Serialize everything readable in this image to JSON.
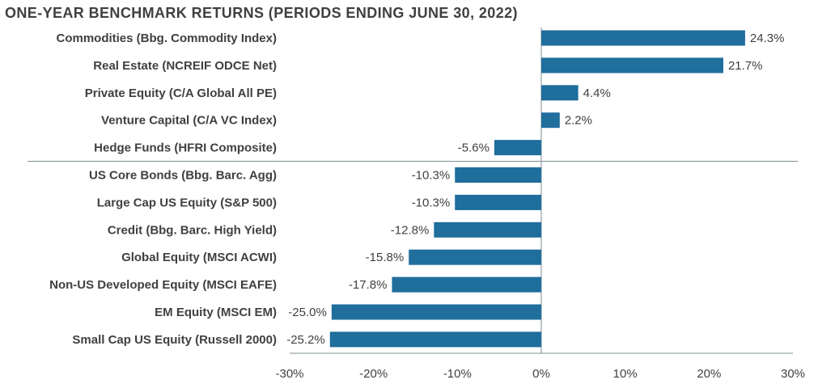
{
  "chart_data": {
    "type": "bar",
    "orientation": "horizontal",
    "title": "ONE-YEAR BENCHMARK RETURNS (PERIODS ENDING JUNE 30, 2022)",
    "xlabel": "",
    "ylabel": "",
    "xlim": [
      -30,
      30
    ],
    "x_ticks": [
      "-30%",
      "-20%",
      "-10%",
      "0%",
      "10%",
      "20%",
      "30%"
    ],
    "x_tick_values": [
      -30,
      -20,
      -10,
      0,
      10,
      20,
      30
    ],
    "categories": [
      "Commodities (Bbg. Commodity Index)",
      "Real Estate (NCREIF ODCE Net)",
      "Private Equity (C/A Global All PE)",
      "Venture Capital (C/A VC Index)",
      "Hedge Funds (HFRI Composite)",
      "US Core Bonds (Bbg. Barc. Agg)",
      "Large Cap US Equity (S&P 500)",
      "Credit (Bbg. Barc. High Yield)",
      "Global Equity (MSCI ACWI)",
      "Non-US Developed Equity (MSCI EAFE)",
      "EM Equity (MSCI EM)",
      "Small Cap US Equity (Russell 2000)"
    ],
    "values": [
      24.3,
      21.7,
      4.4,
      2.2,
      -5.6,
      -10.3,
      -10.3,
      -12.8,
      -15.8,
      -17.8,
      -25.0,
      -25.2
    ],
    "value_labels": [
      "24.3%",
      "21.7%",
      "4.4%",
      "2.2%",
      "-5.6%",
      "-10.3%",
      "-10.3%",
      "-12.8%",
      "-15.8%",
      "-17.8%",
      "-25.0%",
      "-25.2%"
    ],
    "separator_after_index": 4,
    "bar_color": "#1f6e9c",
    "grid": false,
    "legend": "none"
  }
}
